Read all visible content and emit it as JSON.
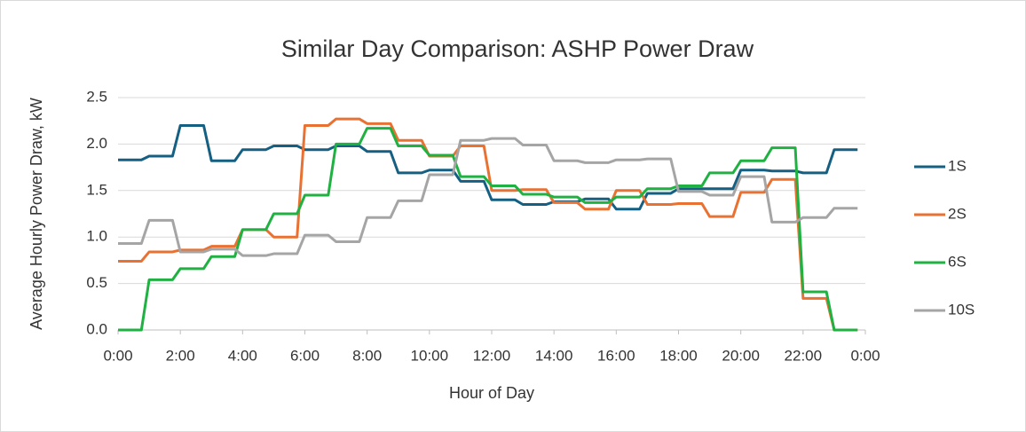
{
  "chart_data": {
    "type": "line",
    "title": "Similar Day Comparison: ASHP Power Draw",
    "xlabel": "Hour of Day",
    "ylabel": "Average Hourly Power Draw, kW",
    "x": [
      0,
      0.75,
      1,
      1.75,
      2,
      2.75,
      3,
      3.75,
      4,
      4.75,
      5,
      5.75,
      6,
      6.75,
      7,
      7.75,
      8,
      8.75,
      9,
      9.75,
      10,
      10.75,
      11,
      11.75,
      12,
      12.75,
      13,
      13.75,
      14,
      14.75,
      15,
      15.75,
      16,
      16.75,
      17,
      17.75,
      18,
      18.75,
      19,
      19.75,
      20,
      20.75,
      21,
      21.75,
      22,
      22.75,
      23,
      23.75
    ],
    "series": [
      {
        "name": "1S",
        "color": "#156082",
        "values": [
          1.83,
          1.83,
          1.87,
          1.87,
          2.2,
          2.2,
          1.82,
          1.82,
          1.94,
          1.94,
          1.98,
          1.98,
          1.94,
          1.94,
          1.98,
          1.98,
          1.92,
          1.92,
          1.69,
          1.69,
          1.72,
          1.72,
          1.6,
          1.6,
          1.4,
          1.4,
          1.35,
          1.35,
          1.38,
          1.38,
          1.41,
          1.41,
          1.3,
          1.3,
          1.47,
          1.47,
          1.52,
          1.52,
          1.52,
          1.52,
          1.72,
          1.72,
          1.71,
          1.71,
          1.69,
          1.69,
          1.94,
          1.94
        ]
      },
      {
        "name": "2S",
        "color": "#e97132",
        "values": [
          0.74,
          0.74,
          0.84,
          0.84,
          0.86,
          0.86,
          0.9,
          0.9,
          1.08,
          1.08,
          1.0,
          1.0,
          2.2,
          2.2,
          2.27,
          2.27,
          2.22,
          2.22,
          2.04,
          2.04,
          1.87,
          1.87,
          1.98,
          1.98,
          1.5,
          1.5,
          1.51,
          1.51,
          1.37,
          1.37,
          1.3,
          1.3,
          1.5,
          1.5,
          1.35,
          1.35,
          1.36,
          1.36,
          1.22,
          1.22,
          1.48,
          1.48,
          1.62,
          1.62,
          0.34,
          0.34,
          0.0,
          0.0
        ]
      },
      {
        "name": "6S",
        "color": "#1fb141",
        "values": [
          0.0,
          0.0,
          0.54,
          0.54,
          0.66,
          0.66,
          0.79,
          0.79,
          1.08,
          1.08,
          1.25,
          1.25,
          1.45,
          1.45,
          2.0,
          2.0,
          2.17,
          2.17,
          1.98,
          1.98,
          1.88,
          1.88,
          1.65,
          1.65,
          1.55,
          1.55,
          1.46,
          1.46,
          1.43,
          1.43,
          1.37,
          1.37,
          1.43,
          1.43,
          1.52,
          1.52,
          1.55,
          1.55,
          1.69,
          1.69,
          1.82,
          1.82,
          1.96,
          1.96,
          0.41,
          0.41,
          0.0,
          0.0
        ]
      },
      {
        "name": "10S",
        "color": "#a5a5a5",
        "values": [
          0.93,
          0.93,
          1.18,
          1.18,
          0.84,
          0.84,
          0.87,
          0.87,
          0.8,
          0.8,
          0.82,
          0.82,
          1.02,
          1.02,
          0.95,
          0.95,
          1.21,
          1.21,
          1.39,
          1.39,
          1.67,
          1.67,
          2.04,
          2.04,
          2.06,
          2.06,
          1.99,
          1.99,
          1.82,
          1.82,
          1.8,
          1.8,
          1.83,
          1.83,
          1.84,
          1.84,
          1.49,
          1.49,
          1.45,
          1.45,
          1.65,
          1.65,
          1.16,
          1.16,
          1.21,
          1.21,
          1.31,
          1.31
        ]
      }
    ],
    "xlim": [
      0,
      24
    ],
    "xticks": [
      {
        "value": 0,
        "label": "0:00"
      },
      {
        "value": 2,
        "label": "2:00"
      },
      {
        "value": 4,
        "label": "4:00"
      },
      {
        "value": 6,
        "label": "6:00"
      },
      {
        "value": 8,
        "label": "8:00"
      },
      {
        "value": 10,
        "label": "10:00"
      },
      {
        "value": 12,
        "label": "12:00"
      },
      {
        "value": 14,
        "label": "14:00"
      },
      {
        "value": 16,
        "label": "16:00"
      },
      {
        "value": 18,
        "label": "18:00"
      },
      {
        "value": 20,
        "label": "20:00"
      },
      {
        "value": 22,
        "label": "22:00"
      },
      {
        "value": 24,
        "label": "0:00"
      }
    ],
    "ylim": [
      0,
      2.5
    ],
    "yticks": [
      {
        "value": 0,
        "label": "0.0"
      },
      {
        "value": 0.5,
        "label": "0.5"
      },
      {
        "value": 1,
        "label": "1.0"
      },
      {
        "value": 1.5,
        "label": "1.5"
      },
      {
        "value": 2,
        "label": "2.0"
      },
      {
        "value": 2.5,
        "label": "2.5"
      }
    ],
    "grid": true,
    "legend": "right"
  }
}
